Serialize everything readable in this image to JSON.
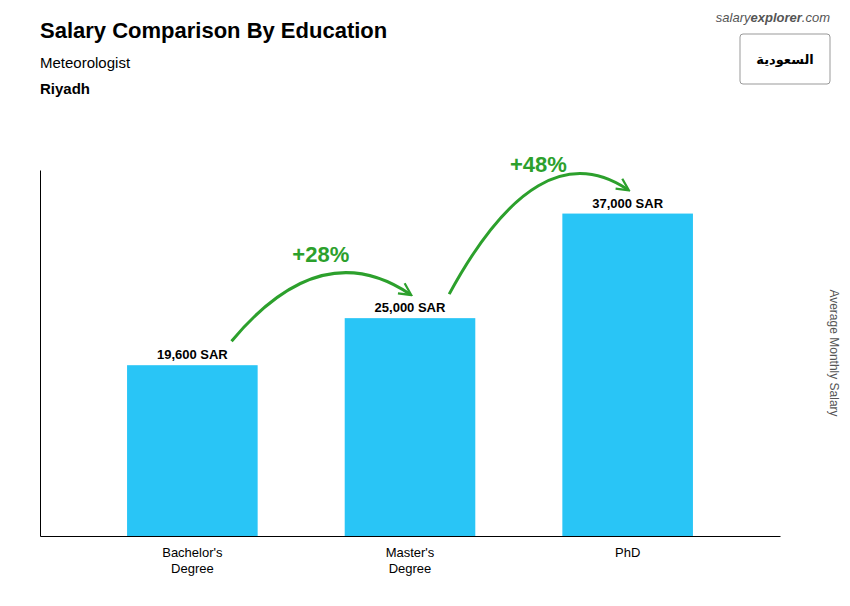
{
  "chart_data": {
    "type": "bar",
    "title": "Salary Comparison By Education",
    "subtitle": "Meteorologist",
    "location": "Riyadh",
    "source": [
      "salary",
      "explorer",
      ".com"
    ],
    "badge": "السعودية",
    "ylabel": "Average Monthly Salary",
    "categories": [
      "Bachelor's\nDegree",
      "Master's\nDegree",
      "PhD"
    ],
    "values": [
      19600,
      25000,
      37000
    ],
    "value_labels": [
      "19,600 SAR",
      "25,000 SAR",
      "37,000 SAR"
    ],
    "data_labels": true,
    "annotations": [
      "+28%",
      "+48%"
    ],
    "color": "#29c5f6",
    "ylim": [
      0,
      42000
    ],
    "yticks": [],
    "tick_labels": "x",
    "grid": false
  }
}
